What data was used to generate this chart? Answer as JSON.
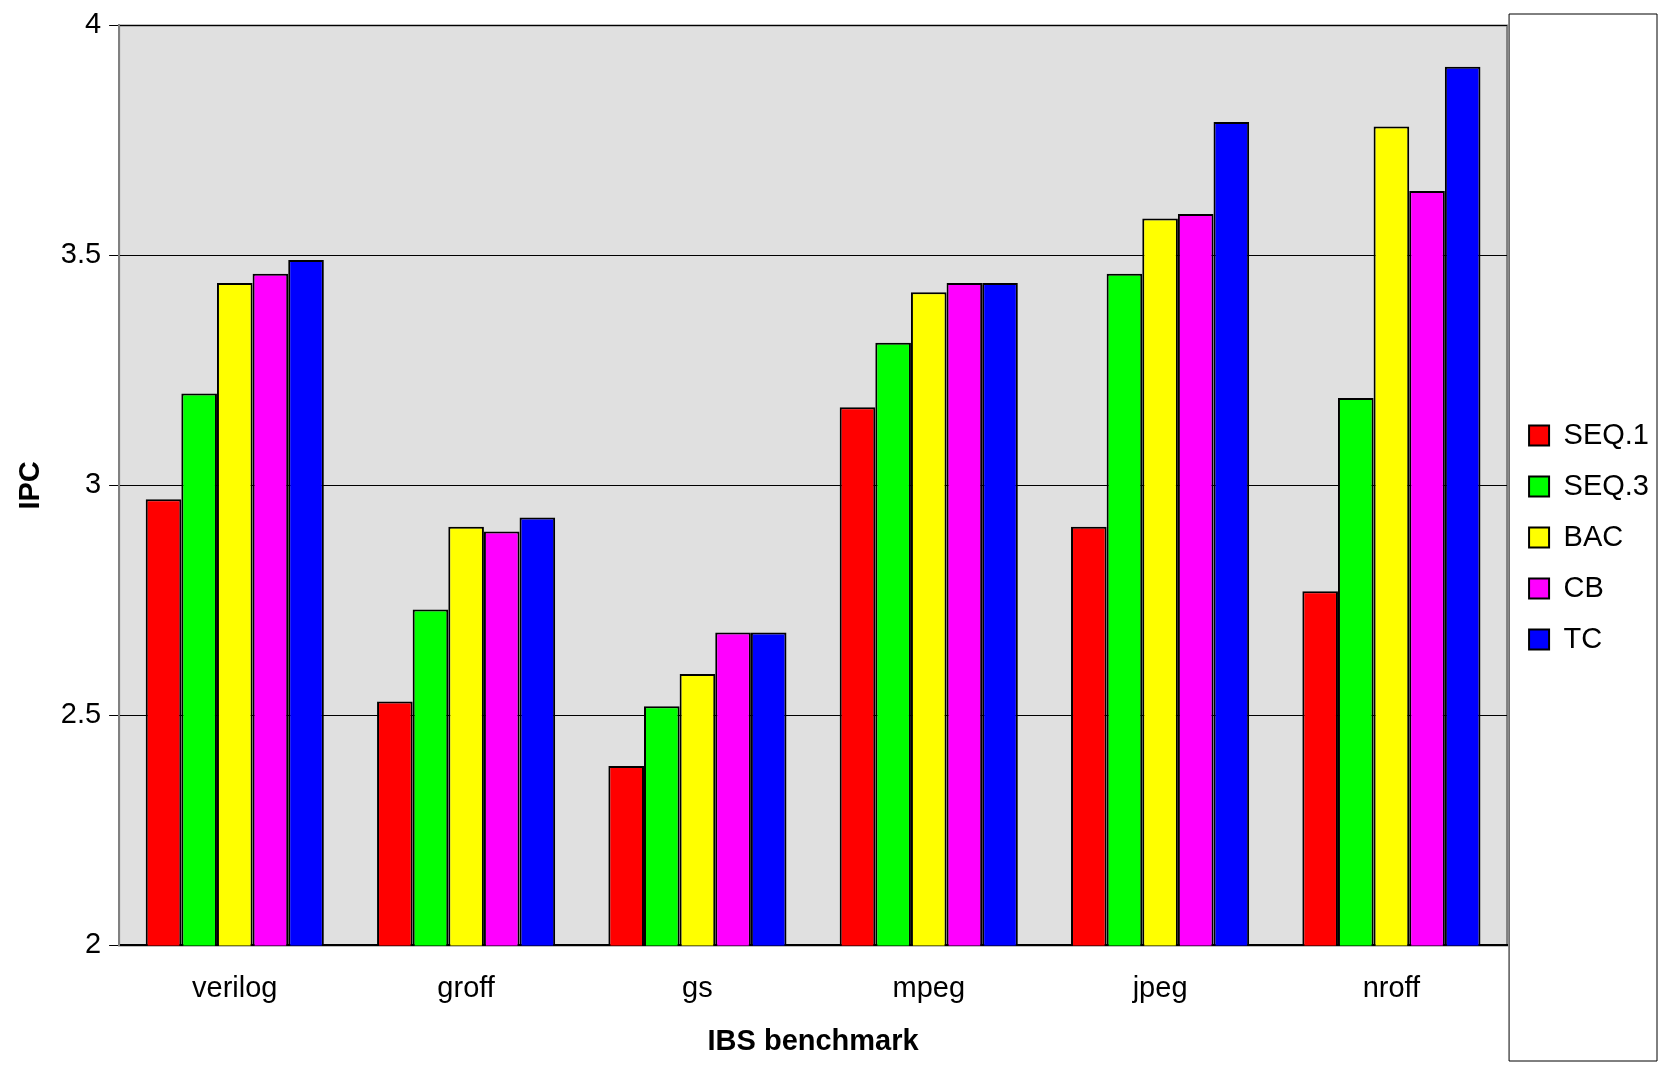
{
  "chart_data": {
    "type": "bar",
    "xlabel": "IBS benchmark",
    "ylabel": "IPC",
    "categories": [
      "verilog",
      "groff",
      "gs",
      "mpeg",
      "jpeg",
      "nroff"
    ],
    "series": [
      {
        "name": "SEQ.1",
        "color": "#ff0000",
        "values": [
          2.97,
          2.53,
          2.39,
          3.17,
          2.91,
          2.77
        ]
      },
      {
        "name": "SEQ.3",
        "color": "#00ff00",
        "values": [
          3.2,
          2.73,
          2.52,
          3.31,
          3.46,
          3.19
        ]
      },
      {
        "name": "BAC",
        "color": "#ffff00",
        "values": [
          3.44,
          2.91,
          2.59,
          3.42,
          3.58,
          3.78
        ]
      },
      {
        "name": "CB",
        "color": "#ff00ff",
        "values": [
          3.46,
          2.9,
          2.68,
          3.44,
          3.59,
          3.64
        ]
      },
      {
        "name": "TC",
        "color": "#0000ff",
        "values": [
          3.49,
          2.93,
          2.68,
          3.44,
          3.79,
          3.91
        ]
      }
    ],
    "ylim": [
      2,
      4
    ],
    "yticks": [
      2,
      2.5,
      3,
      3.5,
      4
    ],
    "grid": "y",
    "legend": "right"
  }
}
